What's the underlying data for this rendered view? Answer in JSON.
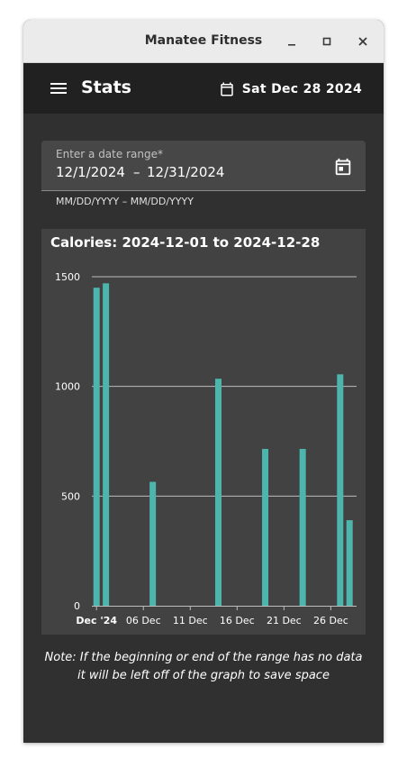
{
  "window": {
    "title": "Manatee Fitness"
  },
  "appbar": {
    "title": "Stats",
    "date": "Sat Dec 28 2024"
  },
  "range_field": {
    "label": "Enter a date range*",
    "start": "12/1/2024",
    "separator": "–",
    "end": "12/31/2024",
    "hint": "MM/DD/YYYY – MM/DD/YYYY"
  },
  "chart_data": {
    "type": "bar",
    "title": "Calories: 2024-12-01 to 2024-12-28",
    "xlabel": "",
    "ylabel": "",
    "ylim": [
      0,
      1500
    ],
    "yticks": [
      0,
      500,
      1000,
      1500
    ],
    "xticks": [
      {
        "label": "Dec '24",
        "date": "2024-12-01"
      },
      {
        "label": "06 Dec",
        "date": "2024-12-06"
      },
      {
        "label": "11 Dec",
        "date": "2024-12-11"
      },
      {
        "label": "16 Dec",
        "date": "2024-12-16"
      },
      {
        "label": "21 Dec",
        "date": "2024-12-21"
      },
      {
        "label": "26 Dec",
        "date": "2024-12-26"
      }
    ],
    "grid": true,
    "bar_color": "#4db6ac",
    "dates": [
      "2024-12-01",
      "2024-12-02",
      "2024-12-07",
      "2024-12-14",
      "2024-12-19",
      "2024-12-23",
      "2024-12-27",
      "2024-12-28"
    ],
    "values": [
      1450,
      1470,
      565,
      1035,
      715,
      715,
      1055,
      390
    ]
  },
  "note": "Note: If the beginning or end of the range has no data it will be left off of the graph to save space"
}
